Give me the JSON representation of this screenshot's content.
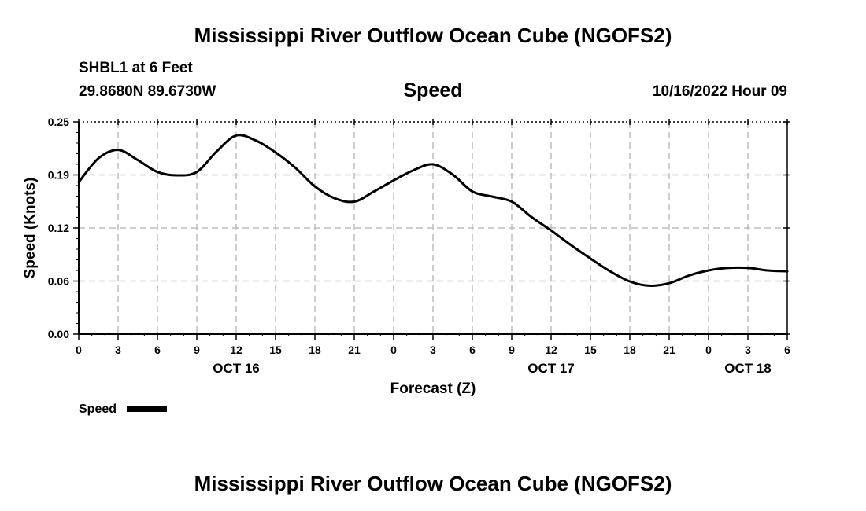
{
  "page": {
    "title": "Mississippi River Outflow Ocean Cube (NGOFS2)",
    "station": "SHBL1 at 6 Feet",
    "coordinates": "29.8680N  89.6730W",
    "timestamp": "10/16/2022 Hour 09",
    "footer_title": "Mississippi River Outflow Ocean Cube (NGOFS2)"
  },
  "chart_data": {
    "type": "line",
    "title": "Speed",
    "xlabel": "Forecast (Z)",
    "ylabel": "Speed (Knots)",
    "xlim": [
      0,
      54
    ],
    "ylim": [
      0,
      0.25
    ],
    "x_ticks": [
      0,
      3,
      6,
      9,
      12,
      15,
      18,
      21,
      24,
      27,
      30,
      33,
      36,
      39,
      42,
      45,
      48,
      51,
      54
    ],
    "x_tick_labels": [
      "0",
      "3",
      "6",
      "9",
      "12",
      "15",
      "18",
      "21",
      "0",
      "3",
      "6",
      "9",
      "12",
      "15",
      "18",
      "21",
      "0",
      "3",
      "6"
    ],
    "y_ticks": [
      0.0,
      0.0625,
      0.125,
      0.1875,
      0.25
    ],
    "y_tick_labels": [
      "0.00",
      "0.06",
      "0.12",
      "0.19",
      "0.25"
    ],
    "date_labels": [
      {
        "x": 12,
        "label": "OCT 16"
      },
      {
        "x": 36,
        "label": "OCT 17"
      },
      {
        "x": 51,
        "label": "OCT 18"
      }
    ],
    "grid": true,
    "legend_position": "bottom-left",
    "series": [
      {
        "name": "Speed",
        "color": "#000000",
        "x": [
          0,
          1.5,
          3,
          4.5,
          6,
          7.5,
          9,
          10.5,
          12,
          13.5,
          15,
          16.5,
          18,
          19.5,
          21,
          22.5,
          24,
          25.5,
          27,
          28.5,
          30,
          31.5,
          33,
          34.5,
          36,
          37.5,
          39,
          40.5,
          42,
          43.5,
          45,
          46.5,
          48,
          49.5,
          51,
          52.5,
          54
        ],
        "values": [
          0.179,
          0.207,
          0.217,
          0.205,
          0.191,
          0.187,
          0.191,
          0.215,
          0.234,
          0.228,
          0.214,
          0.196,
          0.174,
          0.16,
          0.156,
          0.168,
          0.181,
          0.193,
          0.2,
          0.188,
          0.168,
          0.162,
          0.156,
          0.138,
          0.122,
          0.105,
          0.089,
          0.074,
          0.062,
          0.057,
          0.06,
          0.069,
          0.075,
          0.078,
          0.078,
          0.075,
          0.074
        ]
      }
    ]
  }
}
